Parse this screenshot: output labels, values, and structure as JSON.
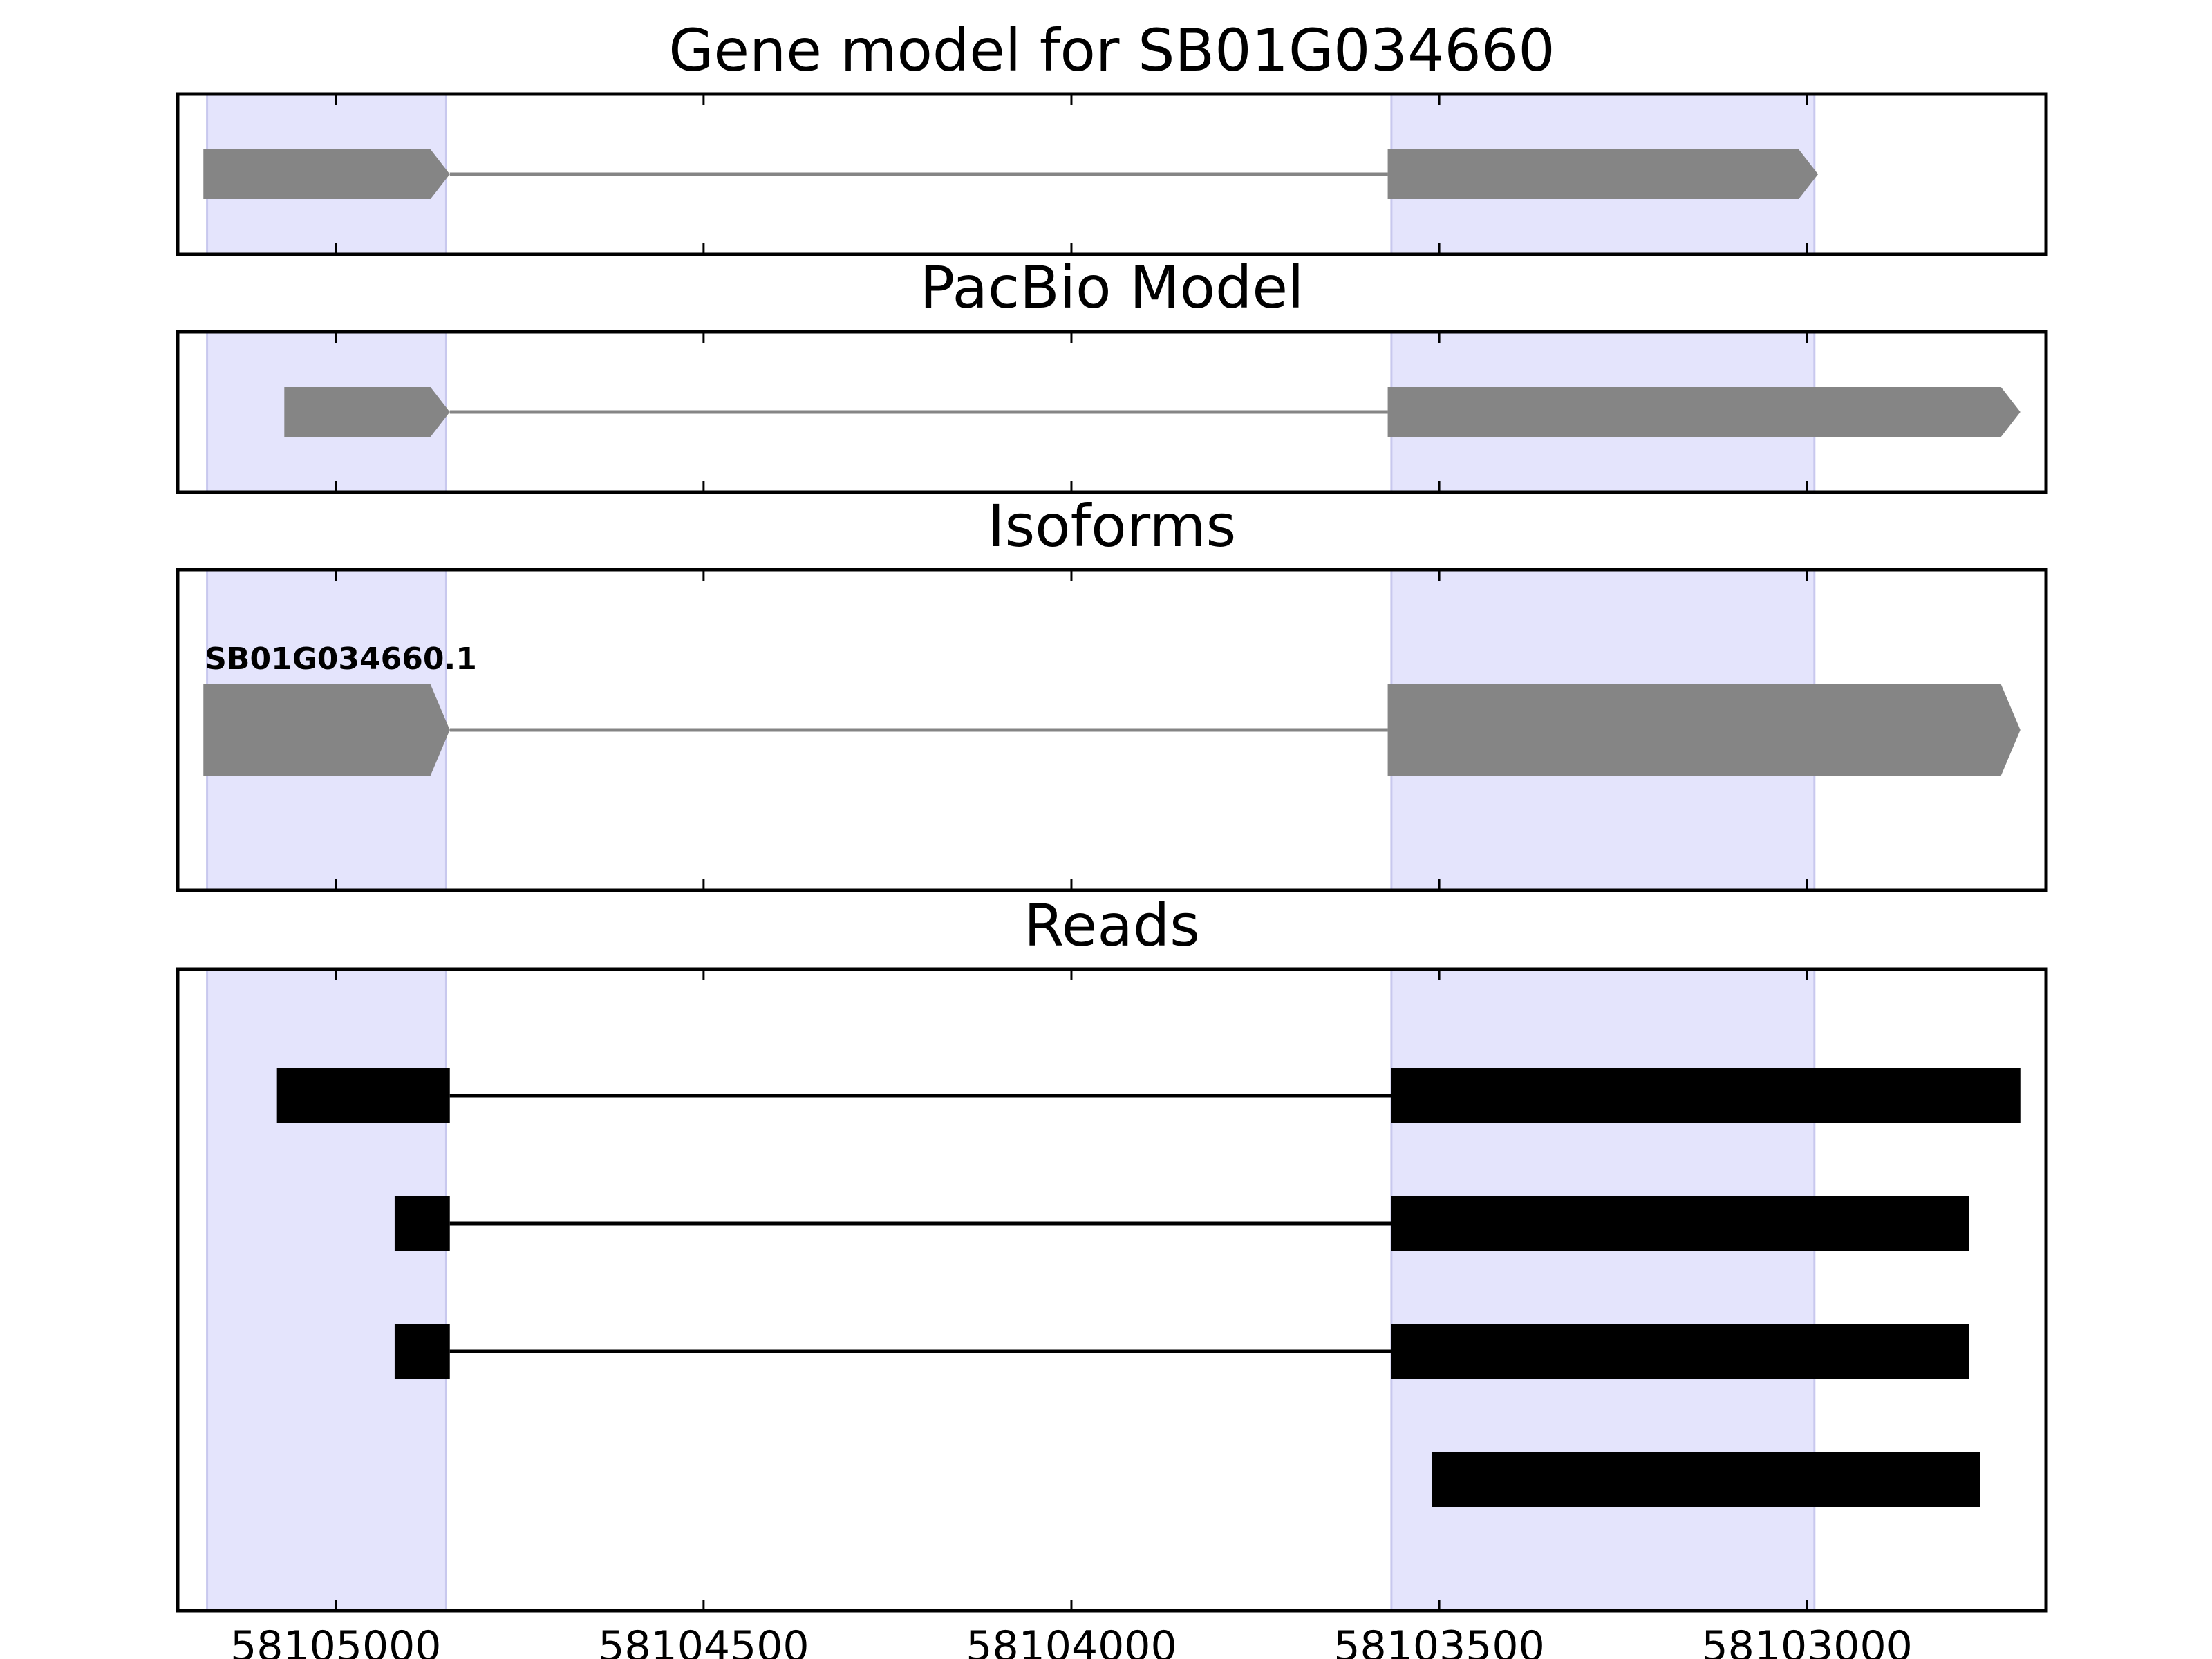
{
  "chart_data": {
    "type": "gene-track",
    "x_axis": {
      "range": [
        58105215,
        58102675
      ],
      "reversed": true,
      "ticks": [
        58105000,
        58104500,
        58104000,
        58103500,
        58103000
      ],
      "tick_labels": [
        "58105000",
        "58104500",
        "58104000",
        "58103500",
        "58103000"
      ]
    },
    "highlight_color": "#e4e4fc",
    "highlight_regions": [
      {
        "start": 58105175,
        "end": 58104850
      },
      {
        "start": 58103565,
        "end": 58102990
      }
    ],
    "panels": [
      {
        "title": "Gene model for SB01G034660",
        "color": "#858585",
        "shape": "arrow",
        "features": [
          {
            "exons": [
              [
                58105180,
                58104845
              ],
              [
                58103570,
                58102985
              ]
            ]
          }
        ]
      },
      {
        "title": "PacBio Model",
        "color": "#858585",
        "shape": "arrow",
        "features": [
          {
            "exons": [
              [
                58105070,
                58104845
              ],
              [
                58103570,
                58102710
              ]
            ]
          }
        ]
      },
      {
        "title": "Isoforms",
        "color": "#858585",
        "shape": "arrow",
        "features": [
          {
            "label": "SB01G034660.1",
            "exons": [
              [
                58105180,
                58104845
              ],
              [
                58103570,
                58102710
              ]
            ]
          }
        ]
      },
      {
        "title": "Reads",
        "color": "#000000",
        "shape": "box",
        "features": [
          {
            "exons": [
              [
                58105080,
                58104845
              ],
              [
                58103565,
                58102710
              ]
            ]
          },
          {
            "exons": [
              [
                58104920,
                58104845
              ],
              [
                58103565,
                58102780
              ]
            ]
          },
          {
            "exons": [
              [
                58104920,
                58104845
              ],
              [
                58103565,
                58102780
              ]
            ]
          },
          {
            "exons": [
              [
                58103510,
                58102765
              ]
            ]
          }
        ]
      }
    ]
  }
}
